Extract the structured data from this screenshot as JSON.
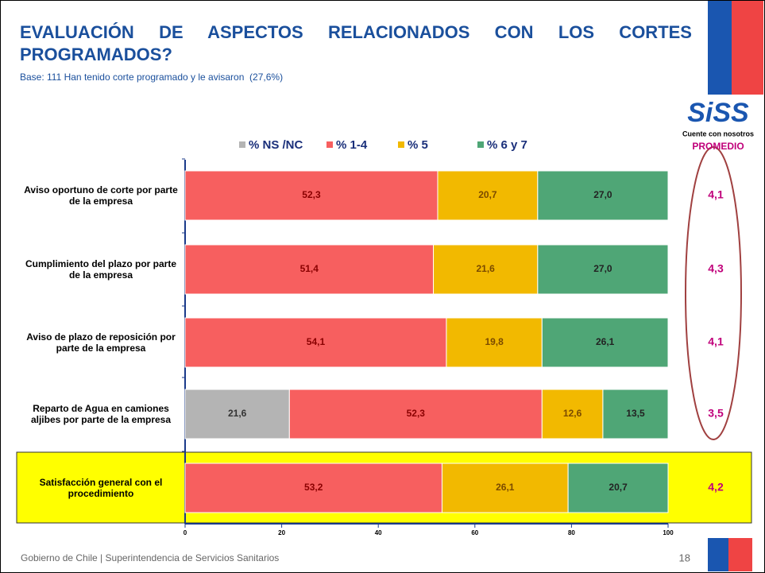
{
  "header": {
    "title": "EVALUACIÓN DE ASPECTOS RELACIONADOS CON LOS CORTES PROGRAMADOS?",
    "subtitle": "Base: 111 Han tenido corte programado y le avisaron  (27,6%)"
  },
  "logo": {
    "name": "SiSS",
    "tagline": "Cuente con nosotros"
  },
  "footer": {
    "text": "Gobierno de Chile | Superintendencia de Servicios Sanitarios",
    "page": "18"
  },
  "chart_data": {
    "type": "stacked-bar-horizontal",
    "categories": [
      "Aviso oportuno de corte por parte de la empresa",
      "Cumplimiento del plazo por parte de la empresa",
      "Aviso de plazo de reposición por parte de la empresa",
      "Reparto de Agua en camiones aljibes por parte de la empresa",
      "Satisfacción general con el procedimiento"
    ],
    "series": [
      {
        "name": "% NS /NC",
        "color": "#b4b4b4",
        "values": [
          null,
          null,
          null,
          21.6,
          null
        ],
        "value_labels": [
          null,
          null,
          null,
          "21,6",
          null
        ]
      },
      {
        "name": "% 1-4",
        "color": "#f75f5f",
        "values": [
          52.3,
          51.4,
          54.1,
          52.3,
          53.2
        ],
        "value_labels": [
          "52,3",
          "51,4",
          "54,1",
          "52,3",
          "53,2"
        ]
      },
      {
        "name": "% 5",
        "color": "#f2b900",
        "values": [
          20.7,
          21.6,
          19.8,
          12.6,
          26.1
        ],
        "value_labels": [
          "20,7",
          "21,6",
          "19,8",
          "12,6",
          "26,1"
        ]
      },
      {
        "name": "% 6 y 7",
        "color": "#4fa676",
        "values": [
          27.0,
          27.0,
          26.1,
          13.5,
          20.7
        ],
        "value_labels": [
          "27,0",
          "27,0",
          "26,1",
          "13,5",
          "20,7"
        ]
      }
    ],
    "xlim": [
      0,
      100
    ],
    "xticks": [
      0,
      20,
      40,
      60,
      80,
      100
    ],
    "promedio": {
      "title": "PROMEDIO",
      "values": [
        4.1,
        4.3,
        4.1,
        3.5,
        4.2
      ],
      "value_labels": [
        "4,1",
        "4,3",
        "4,1",
        "3,5",
        "4,2"
      ]
    }
  }
}
